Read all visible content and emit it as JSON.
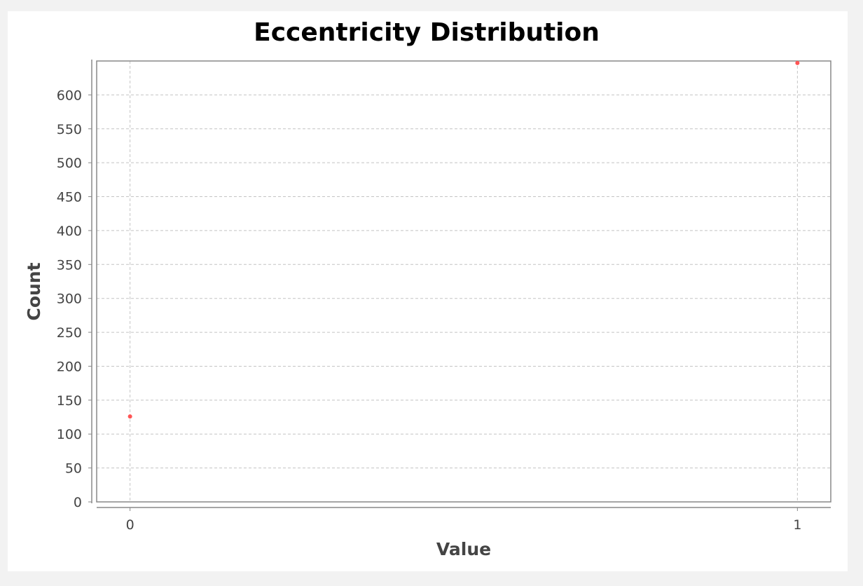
{
  "chart_data": {
    "type": "scatter",
    "title": "Eccentricity Distribution",
    "xlabel": "Value",
    "ylabel": "Count",
    "xlim": [
      -0.05,
      1.05
    ],
    "ylim": [
      0,
      650
    ],
    "x_ticks": [
      0,
      1
    ],
    "y_ticks": [
      0,
      50,
      100,
      150,
      200,
      250,
      300,
      350,
      400,
      450,
      500,
      550,
      600
    ],
    "grid": true,
    "legend": "none",
    "series": [
      {
        "color": "#ff5555",
        "x": [
          0,
          1
        ],
        "y": [
          126,
          647
        ]
      }
    ]
  }
}
